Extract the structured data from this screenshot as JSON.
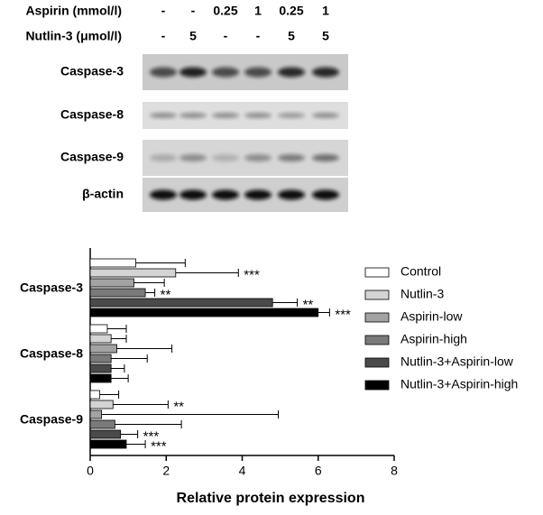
{
  "blot": {
    "treatments": [
      {
        "label": "Aspirin (mmol/l)",
        "values": [
          "-",
          "-",
          "0.25",
          "1",
          "0.25",
          "1"
        ]
      },
      {
        "label": "Nutlin-3 (μmol/l)",
        "values": [
          "-",
          "5",
          "-",
          "-",
          "5",
          "5"
        ]
      }
    ],
    "rows": [
      "Caspase-3",
      "Caspase-8",
      "Caspase-9",
      "β-actin"
    ]
  },
  "chart_data": {
    "type": "barh",
    "categories": [
      "Caspase-3",
      "Caspase-8",
      "Caspase-9"
    ],
    "xlabel": "Relative protein expression",
    "xlim": [
      0,
      8
    ],
    "xticks": [
      0,
      2,
      4,
      6,
      8
    ],
    "legend": "right",
    "series": [
      {
        "name": "Control",
        "color": "#ffffff",
        "values": [
          1.2,
          0.45,
          0.25
        ],
        "errors": [
          1.3,
          0.5,
          0.5
        ],
        "annotations": [
          null,
          null,
          null
        ]
      },
      {
        "name": "Nutlin-3",
        "color": "#d4d4d4",
        "values": [
          2.25,
          0.55,
          0.6
        ],
        "errors": [
          1.65,
          0.4,
          1.45
        ],
        "annotations": [
          "***",
          null,
          "**"
        ]
      },
      {
        "name": "Aspirin-low",
        "color": "#a3a3a3",
        "values": [
          1.15,
          0.7,
          0.3
        ],
        "errors": [
          0.8,
          1.45,
          4.65
        ],
        "annotations": [
          null,
          null,
          null
        ]
      },
      {
        "name": "Aspirin-high",
        "color": "#7a7a7a",
        "values": [
          1.45,
          0.55,
          0.65
        ],
        "errors": [
          0.25,
          0.95,
          1.75
        ],
        "annotations": [
          "**",
          null,
          null
        ]
      },
      {
        "name": "Nutlin-3+Aspirin-low",
        "color": "#4a4a4a",
        "values": [
          4.8,
          0.55,
          0.8
        ],
        "errors": [
          0.65,
          0.35,
          0.45
        ],
        "annotations": [
          "**",
          null,
          "***"
        ]
      },
      {
        "name": "Nutlin-3+Aspirin-high",
        "color": "#000000",
        "values": [
          6.0,
          0.55,
          0.95
        ],
        "errors": [
          0.3,
          0.45,
          0.5
        ],
        "annotations": [
          "***",
          null,
          "***"
        ]
      }
    ]
  }
}
